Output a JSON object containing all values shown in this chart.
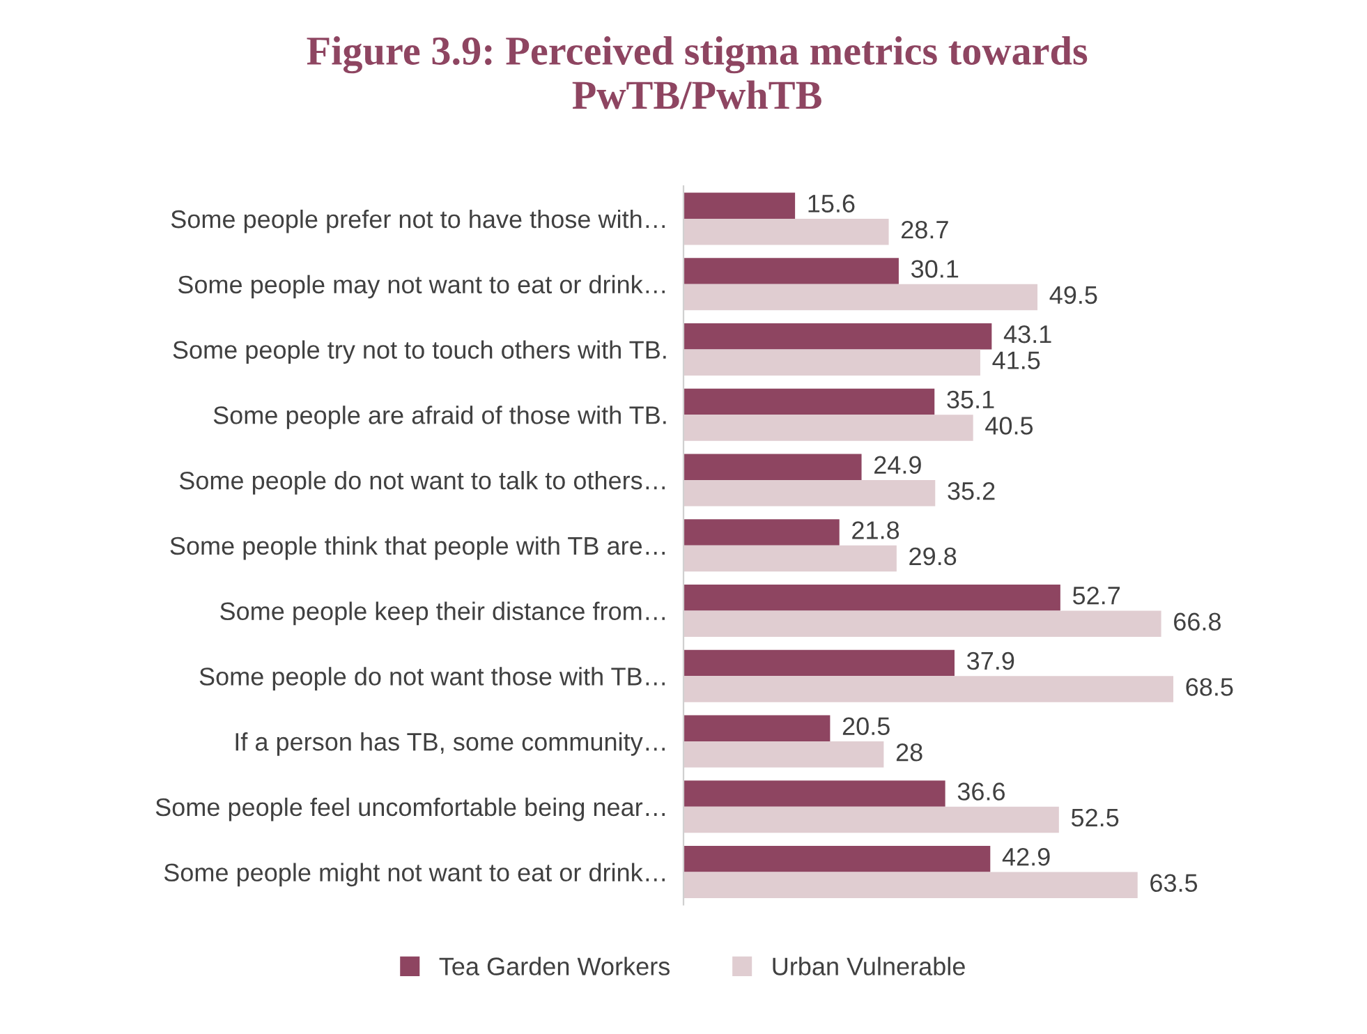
{
  "chart_data": {
    "type": "bar",
    "orientation": "horizontal",
    "title": "Figure 3.9: Perceived stigma metrics towards\nPwTB/PwhTB",
    "categories": [
      "Some people prefer not to have those with…",
      "Some people may not want to eat or drink…",
      "Some people try not to touch others with TB.",
      "Some people are afraid of those with TB.",
      "Some people do not want to talk to others…",
      "Some people think that people with TB are…",
      "Some people keep their distance from…",
      "Some people do not want those with TB…",
      "If a person has TB, some community…",
      "Some people feel uncomfortable being near…",
      "Some people might not want to eat or drink…"
    ],
    "series": [
      {
        "name": "Tea Garden Workers",
        "color": "#8e4561",
        "values": [
          15.6,
          30.1,
          43.1,
          35.1,
          24.9,
          21.8,
          52.7,
          37.9,
          20.5,
          36.6,
          42.9
        ]
      },
      {
        "name": "Urban Vulnerable",
        "color": "#e0cdd1",
        "values": [
          28.7,
          49.5,
          41.5,
          40.5,
          35.2,
          29.8,
          66.8,
          68.5,
          28,
          52.5,
          63.5
        ]
      }
    ],
    "data_labels": true,
    "legend": "bottom",
    "grid": false,
    "tick_labels": "y"
  }
}
